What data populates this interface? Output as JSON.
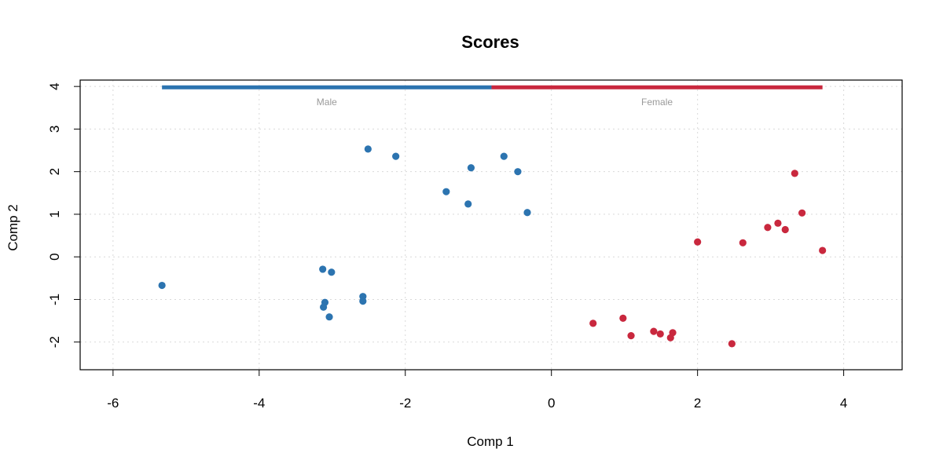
{
  "chart_data": {
    "type": "scatter",
    "title": "Scores",
    "xlabel": "Comp 1",
    "ylabel": "Comp 2",
    "xlim": [
      -6.45,
      4.8
    ],
    "ylim": [
      -2.65,
      4.15
    ],
    "xticks": [
      -6,
      -4,
      -2,
      0,
      2,
      4
    ],
    "yticks": [
      -2,
      -1,
      0,
      1,
      2,
      3,
      4
    ],
    "grid": true,
    "legend_placement": "top",
    "series": [
      {
        "name": "Male",
        "color": "#2c74b0",
        "points": [
          [
            -5.33,
            -0.67
          ],
          [
            -3.13,
            -0.29
          ],
          [
            -3.01,
            -0.36
          ],
          [
            -3.1,
            -1.07
          ],
          [
            -3.12,
            -1.18
          ],
          [
            -3.04,
            -1.41
          ],
          [
            -2.58,
            -0.93
          ],
          [
            -2.58,
            -1.04
          ],
          [
            -2.51,
            2.53
          ],
          [
            -2.13,
            2.36
          ],
          [
            -1.44,
            1.53
          ],
          [
            -1.14,
            1.24
          ],
          [
            -1.1,
            2.09
          ],
          [
            -0.65,
            2.36
          ],
          [
            -0.46,
            2.0
          ],
          [
            -0.33,
            1.04
          ]
        ]
      },
      {
        "name": "Female",
        "color": "#c9283e",
        "points": [
          [
            0.57,
            -1.56
          ],
          [
            0.98,
            -1.44
          ],
          [
            1.09,
            -1.85
          ],
          [
            1.4,
            -1.75
          ],
          [
            1.49,
            -1.81
          ],
          [
            1.63,
            -1.9
          ],
          [
            1.66,
            -1.78
          ],
          [
            2.0,
            0.35
          ],
          [
            2.47,
            -2.04
          ],
          [
            2.62,
            0.33
          ],
          [
            2.96,
            0.69
          ],
          [
            3.1,
            0.79
          ],
          [
            3.2,
            0.64
          ],
          [
            3.33,
            1.96
          ],
          [
            3.43,
            1.03
          ],
          [
            3.71,
            0.15
          ]
        ]
      }
    ],
    "legend_bar": {
      "y": 3.98,
      "segments": [
        {
          "label": "Male",
          "x_start": -5.33,
          "x_end": -0.82,
          "color": "#2c74b0"
        },
        {
          "label": "Female",
          "x_start": -0.82,
          "x_end": 3.71,
          "color": "#c9283e"
        }
      ]
    }
  }
}
